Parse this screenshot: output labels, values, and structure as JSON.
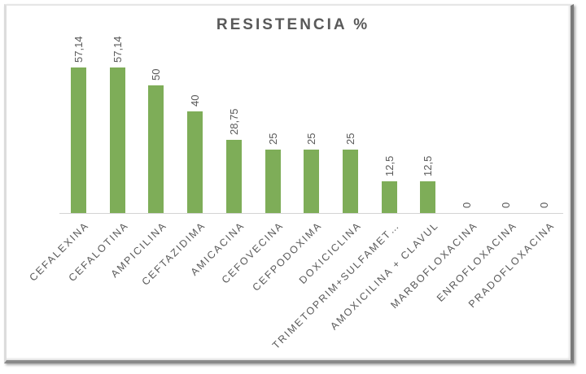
{
  "chart_data": {
    "type": "bar",
    "title": "RESISTENCIA %",
    "xlabel": "",
    "ylabel": "",
    "ylim": [
      0,
      60
    ],
    "grid": false,
    "legend": null,
    "bar_color": "#7ead58",
    "categories": [
      "CEFALEXINA",
      "CEFALOTINA",
      "AMPICILINA",
      "CEFTAZIDIMA",
      "AMICACINA",
      "CEFOVECINA",
      "CEFPODOXIMA",
      "DOXICICLINA",
      "TRIMETOPRIM+SULFAMET…",
      "AMOXICILINA + CLAVUL",
      "MARBOFLOXACINA",
      "ENROFLOXACINA",
      "PRADOFLOXACINA"
    ],
    "values": [
      57.14,
      57.14,
      50,
      40,
      28.75,
      25,
      25,
      25,
      12.5,
      12.5,
      0,
      0,
      0
    ],
    "value_labels": [
      "57,14",
      "57,14",
      "50",
      "40",
      "28,75",
      "25",
      "25",
      "25",
      "12,5",
      "12,5",
      "0",
      "0",
      "0"
    ]
  }
}
